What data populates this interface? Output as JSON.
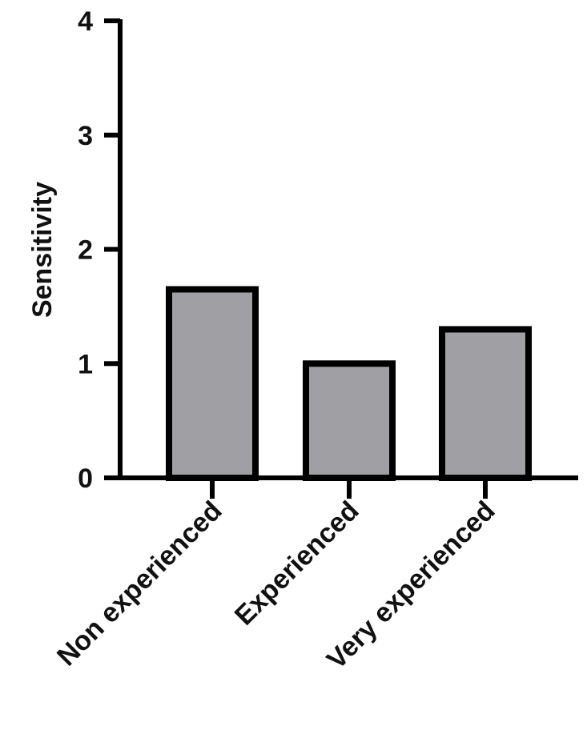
{
  "chart_data": {
    "type": "bar",
    "title": "",
    "xlabel": "",
    "ylabel": "Sensitivity",
    "categories": [
      "Non experienced",
      "Experienced",
      "Very experienced"
    ],
    "values": [
      1.65,
      1.0,
      1.3
    ],
    "ylim": [
      0,
      4
    ],
    "yticks": [
      0,
      1,
      2,
      3,
      4
    ],
    "ytick_labels": [
      "0",
      "1",
      "2",
      "3",
      "4"
    ],
    "grid": false,
    "legend": null,
    "bar_fill_color": "#a0a0a4",
    "bar_edge_color": "#000000",
    "xtick_label_rotation": -45
  }
}
